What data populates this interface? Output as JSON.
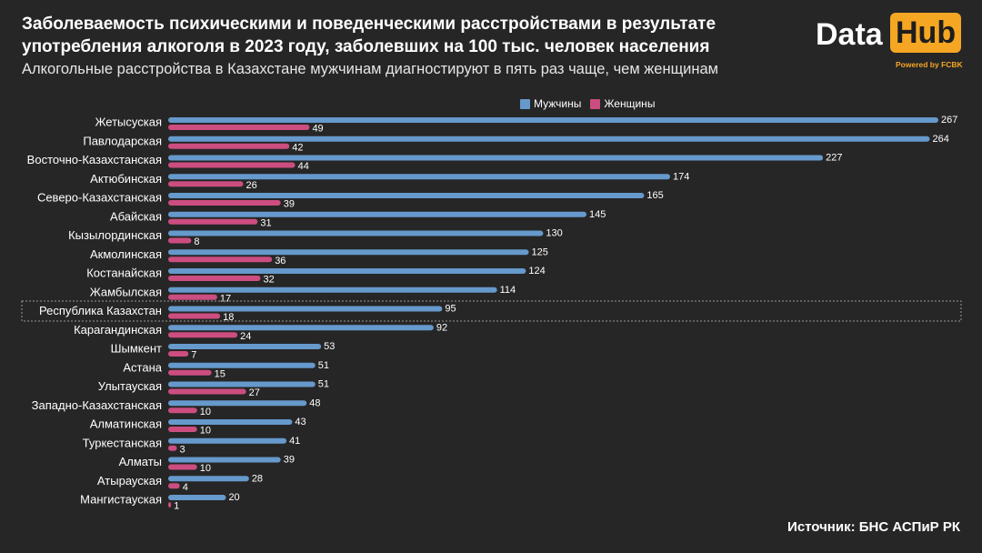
{
  "header": {
    "title": "Заболеваемость психическими и поведенческими расстройствами в результате употребления алкоголя в 2023 году, заболевших на 100 тыс. человек населения",
    "subtitle": "Алкогольные расстройства в Казахстане мужчинам диагностируют в пять раз чаще, чем женщинам"
  },
  "logo": {
    "data_text": "Data",
    "hub_text": "Hub",
    "powered_text": "Powered by FCBK"
  },
  "legend": {
    "men_label": "Мужчины",
    "women_label": "Женщины"
  },
  "source": "Источник: БНС АСПиР РК",
  "colors": {
    "men": "#6699cc",
    "women": "#cc4d80",
    "background": "#262626",
    "accent": "#f5a623"
  },
  "chart_data": {
    "type": "bar",
    "orientation": "horizontal",
    "highlighted_category": "Республика Казахстан",
    "categories": [
      "Жетысуская",
      "Павлодарская",
      "Восточно-Казахстанская",
      "Актюбинская",
      "Северо-Казахстанская",
      "Абайская",
      "Кызылординская",
      "Акмолинская",
      "Костанайская",
      "Жамбылская",
      "Республика Казахстан",
      "Карагандинская",
      "Шымкент",
      "Астана",
      "Улытауская",
      "Западно-Казахстанская",
      "Алматинская",
      "Туркестанская",
      "Алматы",
      "Атырауская",
      "Мангистауская"
    ],
    "series": [
      {
        "name": "Мужчины",
        "values": [
          267,
          264,
          227,
          174,
          165,
          145,
          130,
          125,
          124,
          114,
          95,
          92,
          53,
          51,
          51,
          48,
          43,
          41,
          39,
          28,
          20
        ]
      },
      {
        "name": "Женщины",
        "values": [
          49,
          42,
          44,
          26,
          39,
          31,
          8,
          36,
          32,
          17,
          18,
          24,
          7,
          15,
          27,
          10,
          10,
          3,
          10,
          4,
          1
        ]
      }
    ],
    "xlim": [
      0,
      267
    ],
    "grid": false,
    "legend_position": "top"
  }
}
